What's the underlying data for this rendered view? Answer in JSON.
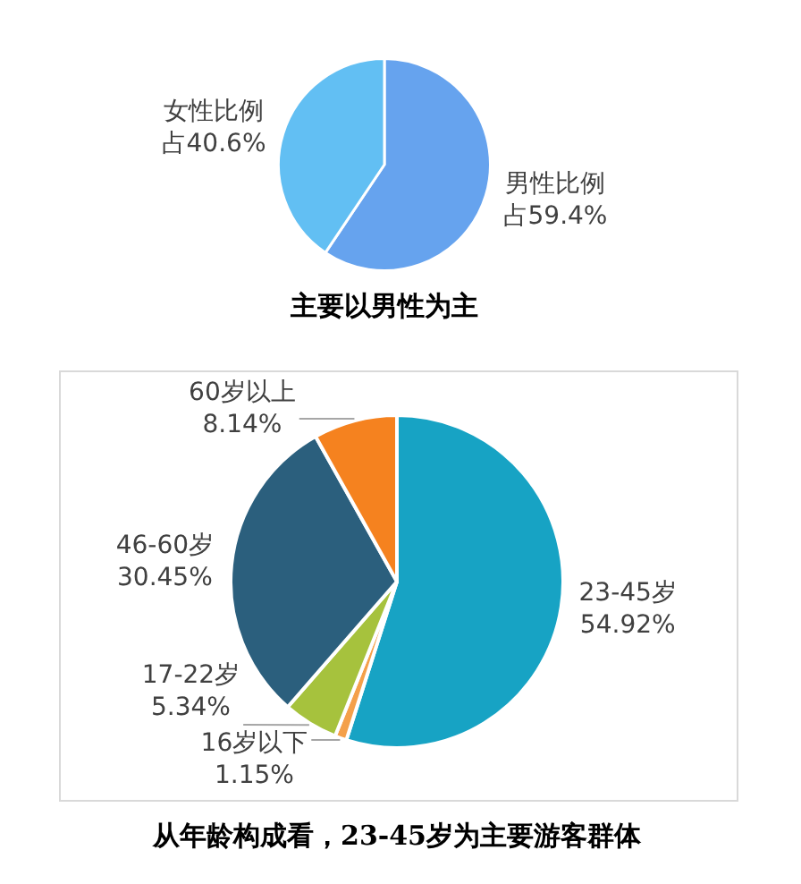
{
  "chart_data": [
    {
      "type": "pie",
      "categories": [
        "男性比例",
        "女性比例"
      ],
      "values": [
        59.4,
        40.6
      ],
      "colors": [
        "#66a3ee",
        "#62bff3"
      ],
      "value_labels": [
        "占59.4%",
        "占40.6%"
      ],
      "annotations": [
        "主要以男性为主"
      ]
    },
    {
      "type": "pie",
      "categories": [
        "23-45岁",
        "16岁以下",
        "17-22岁",
        "46-60岁",
        "60岁以上"
      ],
      "values": [
        54.92,
        1.15,
        5.34,
        30.45,
        8.14
      ],
      "colors": [
        "#17a3c4",
        "#f4a04a",
        "#a6c23d",
        "#2b5f7d",
        "#f5821f"
      ],
      "value_labels": [
        "54.92%",
        "1.15%",
        "5.34%",
        "30.45%",
        "8.14%"
      ],
      "annotations": [
        "从年龄构成看，23-45岁为主要游客群体"
      ]
    }
  ]
}
